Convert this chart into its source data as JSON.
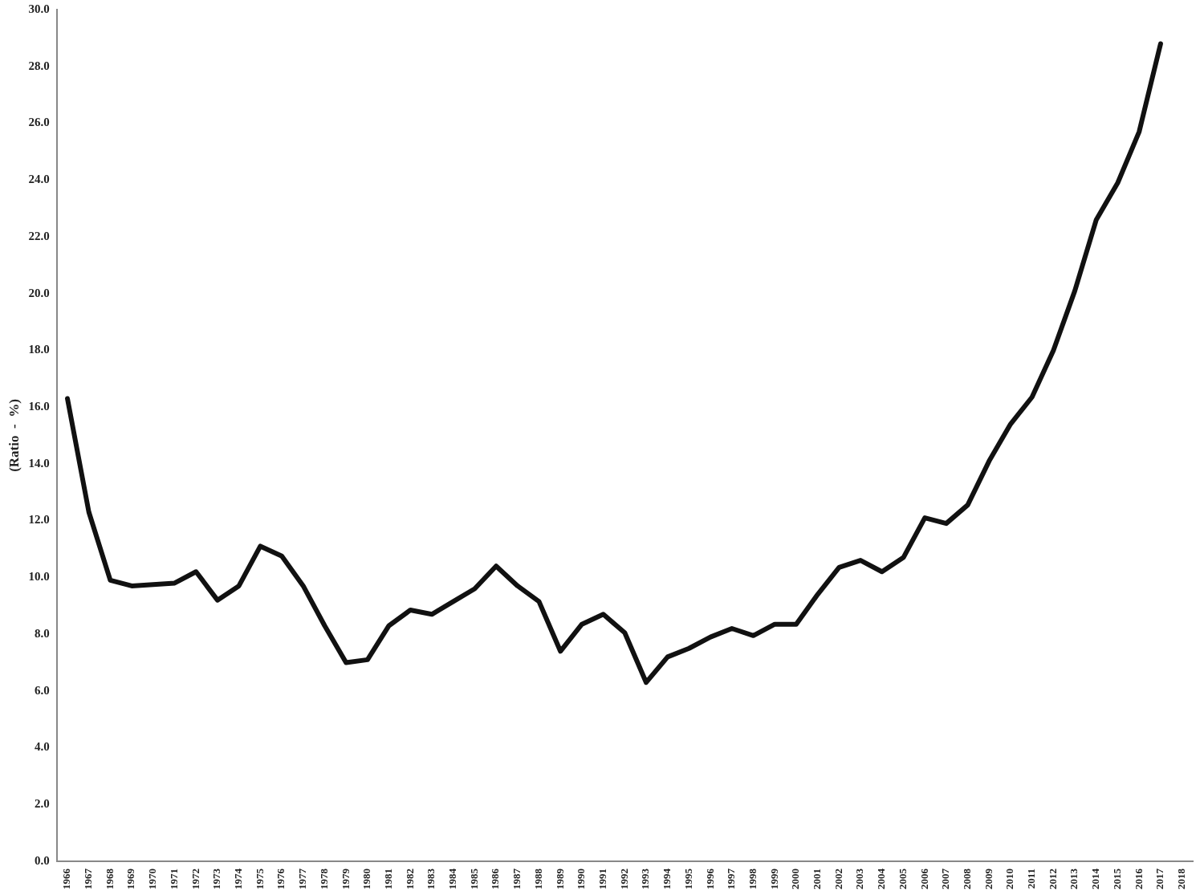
{
  "chart_data": {
    "type": "line",
    "ylabel": "(Ratio  -  %)",
    "categories": [
      "1966",
      "1967",
      "1968",
      "1969",
      "1970",
      "1971",
      "1972",
      "1973",
      "1974",
      "1975",
      "1976",
      "1977",
      "1978",
      "1979",
      "1980",
      "1981",
      "1982",
      "1983",
      "1984",
      "1985",
      "1986",
      "1987",
      "1988",
      "1989",
      "1990",
      "1991",
      "1992",
      "1993",
      "1994",
      "1995",
      "1996",
      "1997",
      "1998",
      "1999",
      "2000",
      "2001",
      "2002",
      "2003",
      "2004",
      "2005",
      "2006",
      "2007",
      "2008",
      "2009",
      "2010",
      "2011",
      "2012",
      "2013",
      "2014",
      "2015",
      "2016",
      "2017",
      "2018"
    ],
    "series": [
      {
        "color": "#111111",
        "values": [
          16.3,
          12.3,
          9.9,
          9.7,
          9.75,
          9.8,
          10.2,
          9.2,
          9.7,
          11.1,
          10.75,
          9.7,
          8.3,
          7.0,
          7.1,
          8.3,
          8.85,
          8.7,
          9.15,
          9.6,
          10.4,
          9.7,
          9.15,
          7.4,
          8.35,
          8.7,
          8.05,
          6.3,
          7.2,
          7.5,
          7.9,
          8.2,
          7.95,
          8.35,
          8.35,
          9.4,
          10.35,
          10.6,
          10.2,
          10.7,
          12.1,
          11.9,
          12.55,
          14.1,
          15.4,
          16.35,
          18.0,
          20.1,
          22.6,
          23.9,
          25.7,
          28.8,
          null
        ]
      }
    ],
    "ylim": [
      0,
      30
    ],
    "yticks": [
      {
        "value": 0,
        "label": "0.0"
      },
      {
        "value": 2,
        "label": "2.0"
      },
      {
        "value": 4,
        "label": "4.0"
      },
      {
        "value": 6,
        "label": "6.0"
      },
      {
        "value": 8,
        "label": "8.0"
      },
      {
        "value": 10,
        "label": "10.0"
      },
      {
        "value": 12,
        "label": "12.0"
      },
      {
        "value": 14,
        "label": "14.0"
      },
      {
        "value": 16,
        "label": "16.0"
      },
      {
        "value": 18,
        "label": "18.0"
      },
      {
        "value": 20,
        "label": "20.0"
      },
      {
        "value": 22,
        "label": "22.0"
      },
      {
        "value": 24,
        "label": "24.0"
      },
      {
        "value": 26,
        "label": "26.0"
      },
      {
        "value": 28,
        "label": "28.0"
      },
      {
        "value": 30,
        "label": "30.0"
      }
    ],
    "grid": false,
    "legend": false,
    "marker": "none",
    "line_style": "solid"
  }
}
